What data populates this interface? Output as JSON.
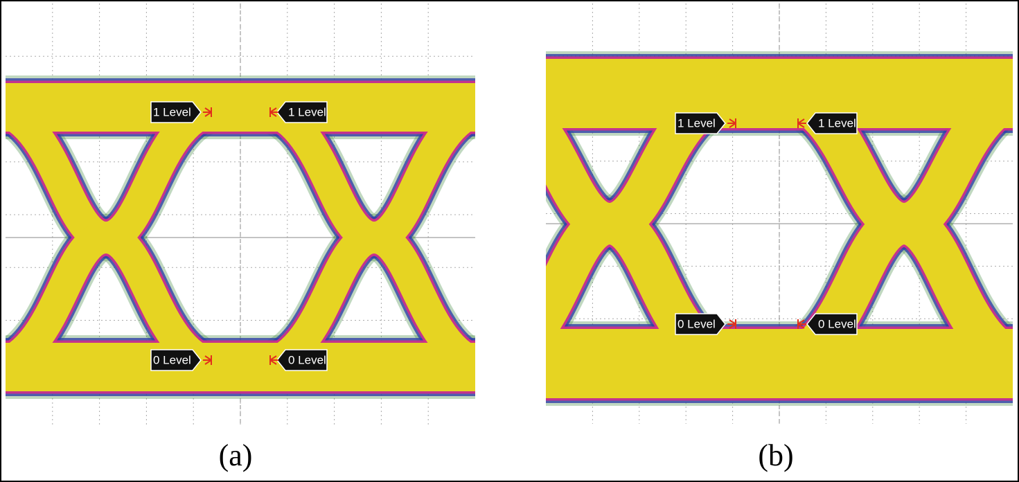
{
  "panels": [
    {
      "caption": "(a)",
      "markers": [
        {
          "label": "1 Level"
        },
        {
          "label": "1 Level"
        },
        {
          "label": "0 Level"
        },
        {
          "label": "0 Level"
        }
      ]
    },
    {
      "caption": "(b)",
      "markers": [
        {
          "label": "1 Level"
        },
        {
          "label": "1 Level"
        },
        {
          "label": "0 Level"
        },
        {
          "label": "0 Level"
        }
      ]
    }
  ]
}
